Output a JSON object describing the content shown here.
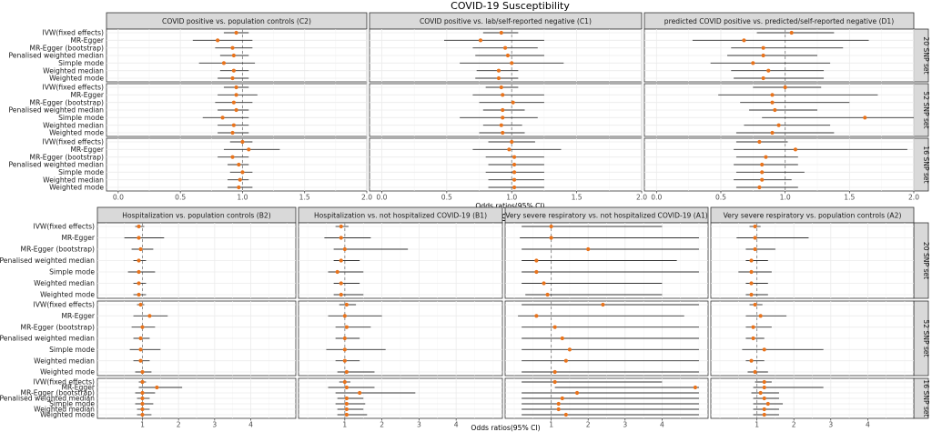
{
  "chart_data": [
    {
      "type": "forest",
      "title": "COVID-19 Susceptibility",
      "xlabel": "Odds ratios(95% CI)",
      "xlim": [
        0,
        2
      ],
      "xticks": [
        "0.0",
        "0.5",
        "1.0",
        "1.5",
        "2.0"
      ],
      "xtick_values": [
        0,
        0.5,
        1.0,
        1.5,
        2.0
      ],
      "reference": 1,
      "methods": [
        "IVW(fixed effects)",
        "MR-Egger",
        "MR-Egger (bootstrap)",
        "Penalised weighted median",
        "Simple mode",
        "Weighted median",
        "Weighted mode"
      ],
      "column_labels": [
        "COVID positive vs. population controls (C2)",
        "COVID positive vs. lab/self-reported negative (C1)",
        "predicted COVID positive vs. predicted/self-reported negative (D1)"
      ],
      "row_labels": [
        "20 SNP set",
        "52 SNP set",
        "16 SNP set"
      ],
      "panels": [
        [
          {
            "or": [
              0.95,
              0.8,
              0.92,
              0.93,
              0.85,
              0.93,
              0.92
            ],
            "lo": [
              0.85,
              0.6,
              0.78,
              0.82,
              0.65,
              0.82,
              0.8
            ],
            "hi": [
              1.05,
              1.08,
              1.08,
              1.05,
              1.1,
              1.05,
              1.05
            ]
          },
          {
            "or": [
              0.92,
              0.76,
              0.95,
              0.97,
              1.0,
              0.9,
              0.9
            ],
            "lo": [
              0.78,
              0.48,
              0.7,
              0.72,
              0.6,
              0.73,
              0.72
            ],
            "hi": [
              1.05,
              1.25,
              1.2,
              1.25,
              1.4,
              1.05,
              1.05
            ]
          },
          {
            "or": [
              1.05,
              0.68,
              0.83,
              0.83,
              0.75,
              0.87,
              0.83
            ],
            "lo": [
              0.78,
              0.28,
              0.58,
              0.55,
              0.42,
              0.58,
              0.6
            ],
            "hi": [
              1.38,
              1.65,
              1.45,
              1.25,
              1.35,
              1.3,
              1.3
            ]
          }
        ],
        [
          {
            "or": [
              0.95,
              0.95,
              0.93,
              0.95,
              0.84,
              0.93,
              0.92
            ],
            "lo": [
              0.85,
              0.8,
              0.78,
              0.8,
              0.68,
              0.8,
              0.8
            ],
            "hi": [
              1.05,
              1.12,
              1.08,
              1.05,
              1.05,
              1.05,
              1.05
            ]
          },
          {
            "or": [
              0.92,
              0.93,
              1.01,
              0.93,
              0.93,
              0.92,
              0.93
            ],
            "lo": [
              0.8,
              0.7,
              0.75,
              0.78,
              0.6,
              0.78,
              0.75
            ],
            "hi": [
              1.05,
              1.25,
              1.25,
              1.1,
              1.2,
              1.08,
              1.1
            ]
          },
          {
            "or": [
              1.0,
              0.9,
              0.9,
              0.92,
              1.62,
              0.95,
              0.9
            ],
            "lo": [
              0.75,
              0.48,
              0.65,
              0.72,
              0.82,
              0.68,
              0.62
            ],
            "hi": [
              1.28,
              1.72,
              1.5,
              1.25,
              2.0,
              1.35,
              1.38
            ]
          }
        ],
        [
          {
            "or": [
              1.0,
              1.05,
              0.92,
              0.97,
              1.0,
              0.98,
              0.97
            ],
            "lo": [
              0.9,
              0.85,
              0.8,
              0.88,
              0.9,
              0.88,
              0.88
            ],
            "hi": [
              1.08,
              1.3,
              1.05,
              1.05,
              1.08,
              1.05,
              1.08
            ]
          },
          {
            "or": [
              1.0,
              0.98,
              1.02,
              1.02,
              1.02,
              1.02,
              1.02
            ],
            "lo": [
              0.82,
              0.7,
              0.8,
              0.82,
              0.8,
              0.82,
              0.82
            ],
            "hi": [
              1.18,
              1.38,
              1.25,
              1.25,
              1.25,
              1.25,
              1.25
            ]
          },
          {
            "or": [
              0.8,
              1.08,
              0.85,
              0.82,
              0.82,
              0.82,
              0.8
            ],
            "lo": [
              0.62,
              0.6,
              0.62,
              0.6,
              0.62,
              0.6,
              0.62
            ],
            "hi": [
              1.02,
              1.95,
              1.1,
              1.1,
              1.15,
              1.05,
              1.1
            ]
          }
        ]
      ]
    },
    {
      "type": "forest",
      "title": "COVID-19 Severity",
      "xlabel": "Odds ratios(95% CI)",
      "xlim": [
        0,
        5
      ],
      "xticks": [
        "1",
        "2",
        "3",
        "4"
      ],
      "xtick_values": [
        1,
        2,
        3,
        4
      ],
      "reference": 1,
      "methods": [
        "IVW(fixed effects)",
        "MR-Egger",
        "MR-Egger (bootstrap)",
        "Penalised weighted median",
        "Simple mode",
        "Weighted median",
        "Weighted mode"
      ],
      "column_labels": [
        "Hospitalization vs. population controls (B2)",
        "Hospitalization vs. not hospitalized COVID-19 (B1)",
        "Very severe respiratory vs. not hospitalized COVID-19 (A1)",
        "Very severe respiratory vs. population controls (A2)"
      ],
      "row_labels": [
        "20 SNP set",
        "52 SNP set",
        "16 SNP set"
      ],
      "panels": [
        [
          {
            "or": [
              0.9,
              0.9,
              0.95,
              0.9,
              0.9,
              0.9,
              0.9
            ],
            "lo": [
              0.8,
              0.5,
              0.7,
              0.75,
              0.6,
              0.75,
              0.75
            ],
            "hi": [
              1.05,
              1.6,
              1.3,
              1.1,
              1.35,
              1.1,
              1.1
            ]
          },
          {
            "or": [
              0.9,
              0.9,
              1.0,
              0.9,
              0.8,
              0.9,
              0.9
            ],
            "lo": [
              0.75,
              0.45,
              0.7,
              0.7,
              0.55,
              0.7,
              0.7
            ],
            "hi": [
              1.1,
              1.7,
              2.7,
              1.4,
              1.5,
              1.4,
              1.5
            ]
          },
          {
            "or": [
              1.0,
              1.0,
              2.0,
              0.6,
              0.6,
              0.8,
              0.9
            ],
            "lo": [
              0.2,
              0.15,
              0.2,
              0.2,
              0.2,
              0.2,
              0.3
            ],
            "hi": [
              4.0,
              5.0,
              5.0,
              4.4,
              5.0,
              4.0,
              4.0
            ]
          },
          {
            "or": [
              0.95,
              0.95,
              0.95,
              0.85,
              0.85,
              0.85,
              0.85
            ],
            "lo": [
              0.8,
              0.45,
              0.7,
              0.7,
              0.5,
              0.7,
              0.7
            ],
            "hi": [
              1.1,
              2.4,
              1.5,
              1.3,
              1.4,
              1.3,
              1.3
            ]
          }
        ],
        [
          {
            "or": [
              0.95,
              1.2,
              1.0,
              0.95,
              0.95,
              0.95,
              1.0
            ],
            "lo": [
              0.85,
              0.75,
              0.7,
              0.75,
              0.65,
              0.75,
              0.8
            ],
            "hi": [
              1.05,
              1.7,
              1.35,
              1.2,
              1.5,
              1.2,
              1.25
            ]
          },
          {
            "or": [
              1.05,
              1.0,
              1.05,
              1.0,
              1.0,
              1.0,
              1.05
            ],
            "lo": [
              0.85,
              0.55,
              0.75,
              0.75,
              0.5,
              0.75,
              0.8
            ],
            "hi": [
              1.3,
              2.0,
              1.7,
              1.4,
              2.1,
              1.4,
              1.8
            ]
          },
          {
            "or": [
              2.4,
              0.6,
              1.1,
              1.3,
              1.5,
              1.4,
              1.1
            ],
            "lo": [
              0.2,
              0.1,
              0.2,
              0.2,
              0.2,
              0.2,
              0.2
            ],
            "hi": [
              5.0,
              4.6,
              5.0,
              5.0,
              5.0,
              5.0,
              5.0
            ]
          },
          {
            "or": [
              0.95,
              1.1,
              0.9,
              0.9,
              1.2,
              0.85,
              0.95
            ],
            "lo": [
              0.8,
              0.7,
              0.7,
              0.7,
              0.6,
              0.7,
              0.75
            ],
            "hi": [
              1.15,
              1.8,
              1.4,
              1.2,
              2.8,
              1.2,
              1.3
            ]
          }
        ],
        [
          {
            "or": [
              1.0,
              1.4,
              1.0,
              1.0,
              1.0,
              1.0,
              1.0
            ],
            "lo": [
              0.9,
              0.9,
              0.8,
              0.85,
              0.8,
              0.85,
              0.85
            ],
            "hi": [
              1.1,
              2.1,
              1.35,
              1.2,
              1.3,
              1.2,
              1.25
            ]
          },
          {
            "or": [
              1.0,
              1.05,
              1.4,
              1.05,
              1.05,
              1.05,
              1.05
            ],
            "lo": [
              0.85,
              0.55,
              0.75,
              0.8,
              0.75,
              0.8,
              0.8
            ],
            "hi": [
              1.15,
              1.8,
              2.9,
              1.5,
              1.55,
              1.5,
              1.6
            ]
          },
          {
            "or": [
              1.1,
              4.9,
              1.7,
              1.3,
              1.2,
              1.2,
              1.4
            ],
            "lo": [
              0.2,
              1.1,
              0.2,
              0.2,
              0.2,
              0.2,
              0.2
            ],
            "hi": [
              4.0,
              5.0,
              5.0,
              5.0,
              5.0,
              5.0,
              5.0
            ]
          },
          {
            "or": [
              1.2,
              1.2,
              1.1,
              1.2,
              1.3,
              1.2,
              1.2
            ],
            "lo": [
              0.95,
              0.9,
              0.85,
              0.9,
              0.9,
              0.9,
              0.9
            ],
            "hi": [
              1.4,
              2.8,
              1.6,
              1.6,
              1.7,
              1.6,
              1.6
            ]
          }
        ]
      ]
    }
  ]
}
